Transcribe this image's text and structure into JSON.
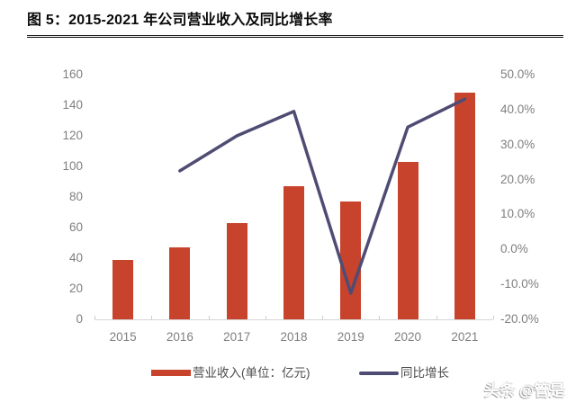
{
  "header": {
    "title": "图 5：2015-2021 年公司营业收入及同比增长率"
  },
  "watermark": "头条 @管是",
  "palette": {
    "bar_color": "#C8432C",
    "line_color": "#4F4C74",
    "axis_text_color": "#7F7F7F",
    "axis_line_color": "#D6D6D6",
    "title_color": "#0A0A0A",
    "title_rule_color": "#1B1B1B"
  },
  "chart_data": {
    "type": "bar",
    "subtype": "bar-line-combo",
    "categories": [
      "2015",
      "2016",
      "2017",
      "2018",
      "2019",
      "2020",
      "2021"
    ],
    "series": [
      {
        "name": "营业收入(单位：亿元)",
        "type": "bar",
        "axis": "left",
        "color": "#C8432C",
        "values": [
          39,
          47,
          63,
          87,
          77,
          103,
          148
        ]
      },
      {
        "name": "同比增长",
        "type": "line",
        "axis": "right",
        "color": "#4F4C74",
        "values": [
          null,
          22.5,
          32.5,
          39.5,
          -12.5,
          35.0,
          43.0
        ]
      }
    ],
    "left_axis": {
      "min": 0,
      "max": 160,
      "step": 20,
      "tick_labels": [
        "0",
        "20",
        "40",
        "60",
        "80",
        "100",
        "120",
        "140",
        "160"
      ]
    },
    "right_axis": {
      "min": -20,
      "max": 50,
      "step": 10,
      "tick_labels": [
        "-20.0%",
        "-10.0%",
        "0.0%",
        "10.0%",
        "20.0%",
        "30.0%",
        "40.0%",
        "50.0%"
      ]
    },
    "grid": false,
    "legend_position": "bottom",
    "legend": [
      {
        "label": "营业收入(单位：亿元)",
        "swatch": "bar"
      },
      {
        "label": "同比增长",
        "swatch": "line"
      }
    ]
  }
}
